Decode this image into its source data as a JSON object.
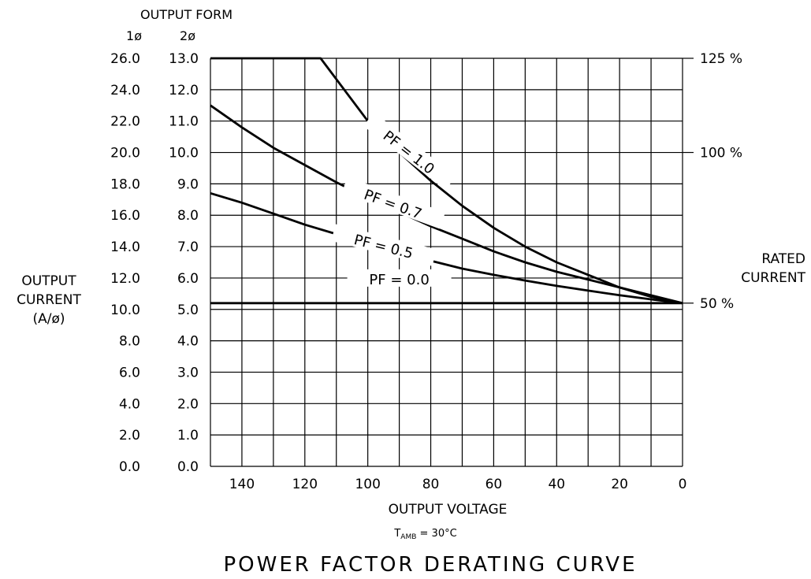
{
  "chart_data": {
    "type": "line",
    "title": "POWER FACTOR DERATING CURVE",
    "xlabel": "OUTPUT VOLTAGE",
    "subnote": {
      "prefix": "T",
      "sub": "AMB",
      "rest": " = 30°C"
    },
    "ylabel_lines": [
      "OUTPUT",
      "CURRENT",
      "(A/ø)"
    ],
    "output_form_label": "OUTPUT FORM",
    "col_1phase": "1ø",
    "col_2phase": "2ø",
    "right_label_lines": [
      "RATED",
      "CURRENT"
    ],
    "xlim": [
      150,
      0
    ],
    "ylim_2phase": [
      0,
      13
    ],
    "x_ticks": [
      "140",
      "120",
      "100",
      "80",
      "60",
      "40",
      "20",
      "0"
    ],
    "y_ticks_1phase": [
      "0.0",
      "2.0",
      "4.0",
      "6.0",
      "8.0",
      "10.0",
      "12.0",
      "14.0",
      "16.0",
      "18.0",
      "20.0",
      "22.0",
      "24.0",
      "26.0"
    ],
    "y_ticks_2phase": [
      "0.0",
      "1.0",
      "2.0",
      "3.0",
      "4.0",
      "5.0",
      "6.0",
      "7.0",
      "8.0",
      "9.0",
      "10.0",
      "11.0",
      "12.0",
      "13.0"
    ],
    "right_pct": [
      {
        "y": 13.0,
        "label": "125 %"
      },
      {
        "y": 10.0,
        "label": "100 %"
      },
      {
        "y": 5.2,
        "label": "50 %"
      }
    ],
    "series": [
      {
        "name": "PF = 1.0",
        "x": [
          150,
          115,
          100,
          90,
          80,
          70,
          60,
          50,
          40,
          30,
          20,
          10,
          0
        ],
        "y": [
          13.0,
          13.0,
          11.0,
          10.0,
          9.1,
          8.3,
          7.6,
          7.0,
          6.5,
          6.1,
          5.7,
          5.4,
          5.2
        ]
      },
      {
        "name": "PF = 0.7",
        "x": [
          150,
          140,
          130,
          120,
          110,
          100,
          90,
          80,
          70,
          60,
          50,
          40,
          30,
          20,
          10,
          0
        ],
        "y": [
          11.5,
          10.8,
          10.15,
          9.6,
          9.05,
          8.55,
          8.1,
          7.65,
          7.25,
          6.85,
          6.5,
          6.2,
          5.95,
          5.7,
          5.45,
          5.2
        ]
      },
      {
        "name": "PF = 0.5",
        "x": [
          150,
          140,
          130,
          120,
          110,
          100,
          90,
          80,
          70,
          60,
          50,
          40,
          30,
          20,
          10,
          0
        ],
        "y": [
          8.7,
          8.4,
          8.05,
          7.7,
          7.4,
          7.1,
          6.8,
          6.55,
          6.3,
          6.1,
          5.92,
          5.75,
          5.6,
          5.45,
          5.32,
          5.2
        ]
      },
      {
        "name": "PF = 0.0",
        "x": [
          150,
          0
        ],
        "y": [
          5.2,
          5.2
        ]
      }
    ],
    "series_labels": [
      "PF  =  1.0",
      "PF  =  0.7",
      "PF  =  0.5",
      "PF  =  0.0"
    ]
  }
}
